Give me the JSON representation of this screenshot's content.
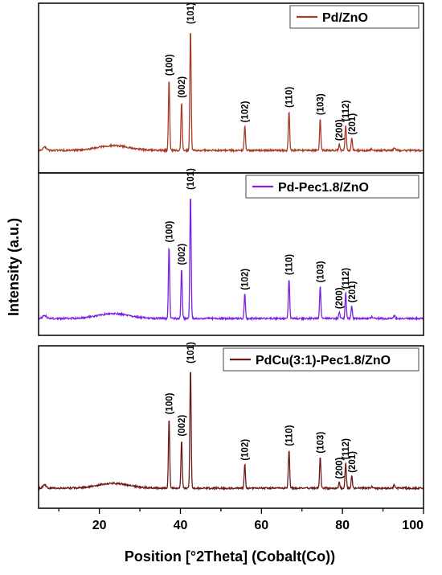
{
  "chart_data": {
    "type": "line",
    "xlabel": "Position [°2Theta] (Cobalt(Co))",
    "ylabel": "Intensity (a.u.)",
    "xlim": [
      5,
      100
    ],
    "xticks": [
      20,
      40,
      60,
      80,
      100
    ],
    "grid": false,
    "legend_position": "top-right",
    "peaks": [
      {
        "hkl": "(100)",
        "x": 37.2,
        "rel": 0.58
      },
      {
        "hkl": "(002)",
        "x": 40.3,
        "rel": 0.4
      },
      {
        "hkl": "(101)",
        "x": 42.5,
        "rel": 1.0
      },
      {
        "hkl": "(102)",
        "x": 55.9,
        "rel": 0.2
      },
      {
        "hkl": "(110)",
        "x": 66.8,
        "rel": 0.32
      },
      {
        "hkl": "(103)",
        "x": 74.5,
        "rel": 0.26
      },
      {
        "hkl": "(200)",
        "x": 79.2,
        "rel": 0.05
      },
      {
        "hkl": "(112)",
        "x": 80.8,
        "rel": 0.21
      },
      {
        "hkl": "(201)",
        "x": 82.3,
        "rel": 0.1
      }
    ],
    "series": [
      {
        "name": "Pd/ZnO",
        "color": "#a83a2a"
      },
      {
        "name": "Pd-Pec1.8/ZnO",
        "color": "#7a22e0"
      },
      {
        "name": "PdCu(3:1)-Pec1.8/ZnO",
        "color": "#6b1a1a"
      }
    ]
  }
}
